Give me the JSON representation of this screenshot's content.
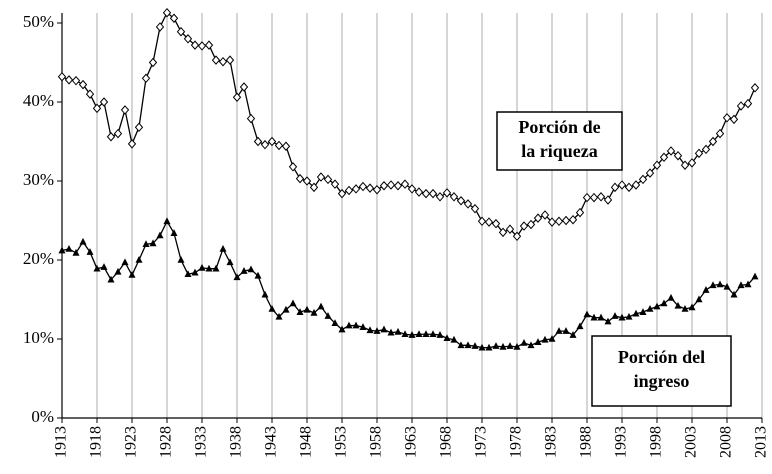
{
  "chart_data": {
    "type": "line",
    "x": [
      1913,
      1914,
      1915,
      1916,
      1917,
      1918,
      1919,
      1920,
      1921,
      1922,
      1923,
      1924,
      1925,
      1926,
      1927,
      1928,
      1929,
      1930,
      1931,
      1932,
      1933,
      1934,
      1935,
      1936,
      1937,
      1938,
      1939,
      1940,
      1941,
      1942,
      1943,
      1944,
      1945,
      1946,
      1947,
      1948,
      1949,
      1950,
      1951,
      1952,
      1953,
      1954,
      1955,
      1956,
      1957,
      1958,
      1959,
      1960,
      1961,
      1962,
      1963,
      1964,
      1965,
      1966,
      1967,
      1968,
      1969,
      1970,
      1971,
      1972,
      1973,
      1974,
      1975,
      1976,
      1977,
      1978,
      1979,
      1980,
      1981,
      1982,
      1983,
      1984,
      1985,
      1986,
      1987,
      1988,
      1989,
      1990,
      1991,
      1992,
      1993,
      1994,
      1995,
      1996,
      1997,
      1998,
      1999,
      2000,
      2001,
      2002,
      2003,
      2004,
      2005,
      2006,
      2007,
      2008,
      2009,
      2010,
      2011,
      2012
    ],
    "series": [
      {
        "name": "Porción de la riqueza",
        "color": "#000000",
        "marker": "diamond",
        "values": [
          43.2,
          42.8,
          42.7,
          42.2,
          41.0,
          39.2,
          40.0,
          35.6,
          36.0,
          39.0,
          34.7,
          36.8,
          43.0,
          45.0,
          49.5,
          51.3,
          50.6,
          48.9,
          48.0,
          47.2,
          47.1,
          47.2,
          45.3,
          45.1,
          45.3,
          40.6,
          41.9,
          37.9,
          35.0,
          34.6,
          35.0,
          34.5,
          34.4,
          31.8,
          30.3,
          30.0,
          29.2,
          30.5,
          30.2,
          29.6,
          28.4,
          28.8,
          29.0,
          29.3,
          29.1,
          28.9,
          29.4,
          29.5,
          29.4,
          29.6,
          29.0,
          28.6,
          28.4,
          28.4,
          28.0,
          28.5,
          28.0,
          27.5,
          27.1,
          26.5,
          24.9,
          24.8,
          24.6,
          23.5,
          23.9,
          23.0,
          24.3,
          24.5,
          25.3,
          25.7,
          24.8,
          24.9,
          25.0,
          25.1,
          26.0,
          27.9,
          27.9,
          28.0,
          27.6,
          29.2,
          29.5,
          29.2,
          29.5,
          30.2,
          31.0,
          32.0,
          33.0,
          33.8,
          33.2,
          32.0,
          32.3,
          33.5,
          34.0,
          35.0,
          36.0,
          38.0,
          37.8,
          39.5,
          39.8,
          41.8
        ]
      },
      {
        "name": "Porción del ingreso",
        "color": "#000000",
        "marker": "triangle",
        "values": [
          21.2,
          21.4,
          20.9,
          22.3,
          21.0,
          18.9,
          19.1,
          17.5,
          18.5,
          19.7,
          18.1,
          20.0,
          22.0,
          22.1,
          23.1,
          24.9,
          23.4,
          20.0,
          18.2,
          18.4,
          19.0,
          18.9,
          18.9,
          21.4,
          19.7,
          17.8,
          18.6,
          18.8,
          18.0,
          15.6,
          13.8,
          12.8,
          13.7,
          14.5,
          13.4,
          13.7,
          13.3,
          14.1,
          12.9,
          12.0,
          11.2,
          11.7,
          11.7,
          11.5,
          11.1,
          11.0,
          11.2,
          10.8,
          10.9,
          10.6,
          10.5,
          10.6,
          10.6,
          10.6,
          10.5,
          10.1,
          9.9,
          9.2,
          9.2,
          9.1,
          8.9,
          8.9,
          9.1,
          9.0,
          9.1,
          9.0,
          9.5,
          9.2,
          9.6,
          9.9,
          10.0,
          11.0,
          11.0,
          10.5,
          11.6,
          13.1,
          12.7,
          12.7,
          12.2,
          12.9,
          12.7,
          12.8,
          13.2,
          13.4,
          13.8,
          14.1,
          14.5,
          15.2,
          14.2,
          13.8,
          14.0,
          15.0,
          16.2,
          16.8,
          16.9,
          16.6,
          15.6,
          16.8,
          16.9,
          17.9
        ]
      }
    ],
    "annotations": [
      {
        "lines": [
          "Porción de",
          "la riqueza"
        ]
      },
      {
        "lines": [
          "Porción del",
          "ingreso"
        ]
      }
    ],
    "xlim": [
      1913,
      2013
    ],
    "xticks": [
      1913,
      1918,
      1923,
      1928,
      1933,
      1938,
      1943,
      1948,
      1953,
      1958,
      1963,
      1968,
      1973,
      1978,
      1983,
      1988,
      1993,
      1998,
      2003,
      2008,
      2013
    ],
    "ylim": [
      0,
      50
    ],
    "yticks": [
      {
        "value": 0,
        "label": "0%"
      },
      {
        "value": 10,
        "label": "10%"
      },
      {
        "value": 20,
        "label": "20%"
      },
      {
        "value": 30,
        "label": "30%"
      },
      {
        "value": 40,
        "label": "40%"
      },
      {
        "value": 50,
        "label": "50%"
      }
    ],
    "grid": "x"
  }
}
